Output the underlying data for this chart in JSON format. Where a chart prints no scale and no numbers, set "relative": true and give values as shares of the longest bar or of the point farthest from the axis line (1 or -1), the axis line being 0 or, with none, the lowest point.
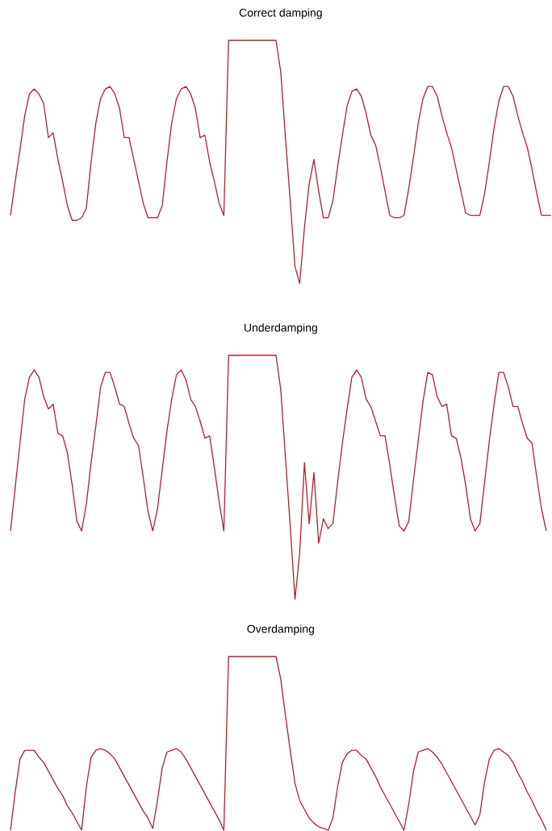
{
  "chart_data": [
    {
      "type": "line",
      "title": "Correct damping",
      "relative": true,
      "color": "#b0202e",
      "categories": [
        null,
        null,
        null,
        null,
        null,
        null,
        null,
        null,
        null,
        null,
        null,
        null,
        null,
        null,
        null,
        null,
        null,
        null,
        null,
        null,
        null,
        null,
        null,
        null,
        null,
        null,
        null,
        null,
        null,
        null,
        null,
        null,
        null,
        null,
        null,
        null,
        null,
        null,
        null,
        null,
        null,
        null,
        null,
        null,
        null,
        null,
        null,
        null,
        null,
        null,
        null,
        null,
        null,
        null,
        null,
        null,
        null,
        null,
        null,
        null,
        null,
        null,
        null,
        null,
        null,
        null,
        null,
        null,
        null,
        null,
        null,
        null,
        null,
        null,
        null,
        null,
        null,
        null,
        null,
        null,
        null,
        null,
        null,
        null,
        null,
        null,
        null,
        null,
        null,
        null,
        null,
        null,
        null,
        null,
        null,
        null,
        null,
        null,
        null,
        null,
        null,
        null,
        null,
        null,
        null,
        null,
        null,
        null,
        null,
        null,
        null,
        null,
        null,
        null,
        null
      ],
      "values": [
        0.28,
        0.42,
        0.55,
        0.69,
        0.78,
        0.8,
        0.78,
        0.74,
        0.6,
        0.62,
        0.51,
        0.42,
        0.32,
        0.26,
        0.26,
        0.27,
        0.31,
        0.5,
        0.66,
        0.76,
        0.8,
        0.81,
        0.78,
        0.72,
        0.6,
        0.6,
        0.51,
        0.42,
        0.33,
        0.27,
        0.27,
        0.27,
        0.32,
        0.5,
        0.66,
        0.76,
        0.8,
        0.81,
        0.78,
        0.72,
        0.6,
        0.61,
        0.5,
        0.42,
        0.33,
        0.28,
        1.0,
        1.0,
        1.0,
        1.0,
        1.0,
        1.0,
        1.0,
        1.0,
        1.0,
        1.0,
        1.0,
        0.87,
        0.6,
        0.34,
        0.07,
        0.0,
        0.23,
        0.41,
        0.51,
        0.38,
        0.27,
        0.27,
        0.34,
        0.48,
        0.61,
        0.73,
        0.79,
        0.8,
        0.77,
        0.7,
        0.61,
        0.57,
        0.48,
        0.38,
        0.28,
        0.27,
        0.27,
        0.28,
        0.39,
        0.52,
        0.66,
        0.76,
        0.81,
        0.81,
        0.77,
        0.69,
        0.62,
        0.56,
        0.47,
        0.38,
        0.29,
        0.28,
        0.28,
        0.28,
        0.37,
        0.5,
        0.64,
        0.75,
        0.81,
        0.81,
        0.77,
        0.69,
        0.62,
        0.56,
        0.47,
        0.37,
        0.28,
        0.28,
        0.28
      ]
    },
    {
      "type": "line",
      "title": "Underdamping",
      "relative": true,
      "color": "#b0202e",
      "categories": [
        null,
        null,
        null,
        null,
        null,
        null,
        null,
        null,
        null,
        null,
        null,
        null,
        null,
        null,
        null,
        null,
        null,
        null,
        null,
        null,
        null,
        null,
        null,
        null,
        null,
        null,
        null,
        null,
        null,
        null,
        null,
        null,
        null,
        null,
        null,
        null,
        null,
        null,
        null,
        null,
        null,
        null,
        null,
        null,
        null,
        null,
        null,
        null,
        null,
        null,
        null,
        null,
        null,
        null,
        null,
        null,
        null,
        null,
        null,
        null,
        null,
        null,
        null,
        null,
        null,
        null,
        null,
        null,
        null,
        null,
        null,
        null,
        null,
        null,
        null,
        null,
        null,
        null,
        null,
        null,
        null,
        null,
        null,
        null,
        null,
        null,
        null,
        null,
        null,
        null,
        null,
        null,
        null,
        null,
        null,
        null,
        null,
        null,
        null,
        null,
        null,
        null,
        null,
        null,
        null,
        null,
        null,
        null,
        null,
        null,
        null,
        null,
        null,
        null,
        null
      ],
      "values": [
        0.28,
        0.46,
        0.64,
        0.82,
        0.91,
        0.94,
        0.91,
        0.83,
        0.78,
        0.8,
        0.68,
        0.67,
        0.6,
        0.47,
        0.32,
        0.28,
        0.39,
        0.56,
        0.71,
        0.87,
        0.93,
        0.93,
        0.87,
        0.8,
        0.79,
        0.72,
        0.66,
        0.63,
        0.5,
        0.36,
        0.28,
        0.37,
        0.53,
        0.69,
        0.82,
        0.92,
        0.94,
        0.9,
        0.82,
        0.79,
        0.73,
        0.66,
        0.67,
        0.54,
        0.4,
        0.28,
        1.0,
        1.0,
        1.0,
        1.0,
        1.0,
        1.0,
        1.0,
        1.0,
        1.0,
        1.0,
        1.0,
        0.86,
        0.58,
        0.3,
        0.0,
        0.19,
        0.56,
        0.31,
        0.52,
        0.23,
        0.33,
        0.29,
        0.31,
        0.48,
        0.64,
        0.78,
        0.91,
        0.94,
        0.91,
        0.82,
        0.79,
        0.73,
        0.67,
        0.67,
        0.55,
        0.42,
        0.3,
        0.28,
        0.32,
        0.49,
        0.65,
        0.81,
        0.93,
        0.92,
        0.83,
        0.79,
        0.8,
        0.67,
        0.66,
        0.58,
        0.47,
        0.33,
        0.28,
        0.31,
        0.48,
        0.65,
        0.8,
        0.93,
        0.93,
        0.87,
        0.79,
        0.79,
        0.72,
        0.66,
        0.64,
        0.5,
        0.37,
        0.28,
        null
      ]
    },
    {
      "type": "line",
      "title": "Overdamping",
      "relative": true,
      "color": "#b0202e",
      "categories": [
        null,
        null,
        null,
        null,
        null,
        null,
        null,
        null,
        null,
        null,
        null,
        null,
        null,
        null,
        null,
        null,
        null,
        null,
        null,
        null,
        null,
        null,
        null,
        null,
        null,
        null,
        null,
        null,
        null,
        null,
        null,
        null,
        null,
        null,
        null,
        null,
        null,
        null,
        null,
        null,
        null,
        null,
        null,
        null,
        null,
        null,
        null,
        null,
        null,
        null,
        null,
        null,
        null,
        null,
        null,
        null,
        null,
        null,
        null,
        null,
        null,
        null,
        null,
        null,
        null,
        null,
        null,
        null,
        null,
        null,
        null,
        null,
        null,
        null,
        null,
        null,
        null,
        null,
        null,
        null,
        null,
        null,
        null,
        null,
        null,
        null,
        null,
        null,
        null,
        null,
        null,
        null,
        null,
        null,
        null,
        null,
        null,
        null,
        null,
        null,
        null,
        null,
        null,
        null,
        null,
        null,
        null,
        null,
        null,
        null,
        null,
        null,
        null,
        null,
        null
      ],
      "values": [
        0.0,
        0.22,
        0.41,
        0.46,
        0.46,
        0.46,
        0.42,
        0.39,
        0.34,
        0.29,
        0.24,
        0.2,
        0.14,
        0.1,
        0.05,
        0.0,
        0.25,
        0.42,
        0.46,
        0.47,
        0.46,
        0.44,
        0.41,
        0.36,
        0.31,
        0.26,
        0.21,
        0.16,
        0.11,
        0.07,
        0.01,
        0.17,
        0.36,
        0.45,
        0.46,
        0.47,
        0.45,
        0.41,
        0.36,
        0.31,
        0.26,
        0.21,
        0.16,
        0.11,
        0.06,
        0.0,
        1.0,
        1.0,
        1.0,
        1.0,
        1.0,
        1.0,
        1.0,
        1.0,
        1.0,
        1.0,
        1.0,
        0.87,
        0.66,
        0.46,
        0.27,
        0.17,
        0.12,
        0.07,
        0.04,
        0.02,
        0.01,
        0.0,
        0.07,
        0.25,
        0.39,
        0.44,
        0.46,
        0.46,
        0.43,
        0.41,
        0.36,
        0.31,
        0.25,
        0.2,
        0.15,
        0.1,
        0.05,
        0.0,
        0.15,
        0.34,
        0.45,
        0.46,
        0.47,
        0.45,
        0.42,
        0.38,
        0.33,
        0.28,
        0.23,
        0.18,
        0.13,
        0.08,
        0.03,
        0.09,
        0.28,
        0.41,
        0.46,
        0.47,
        0.45,
        0.43,
        0.39,
        0.33,
        0.28,
        0.22,
        0.17,
        0.11,
        0.06,
        0.0,
        null
      ]
    }
  ]
}
